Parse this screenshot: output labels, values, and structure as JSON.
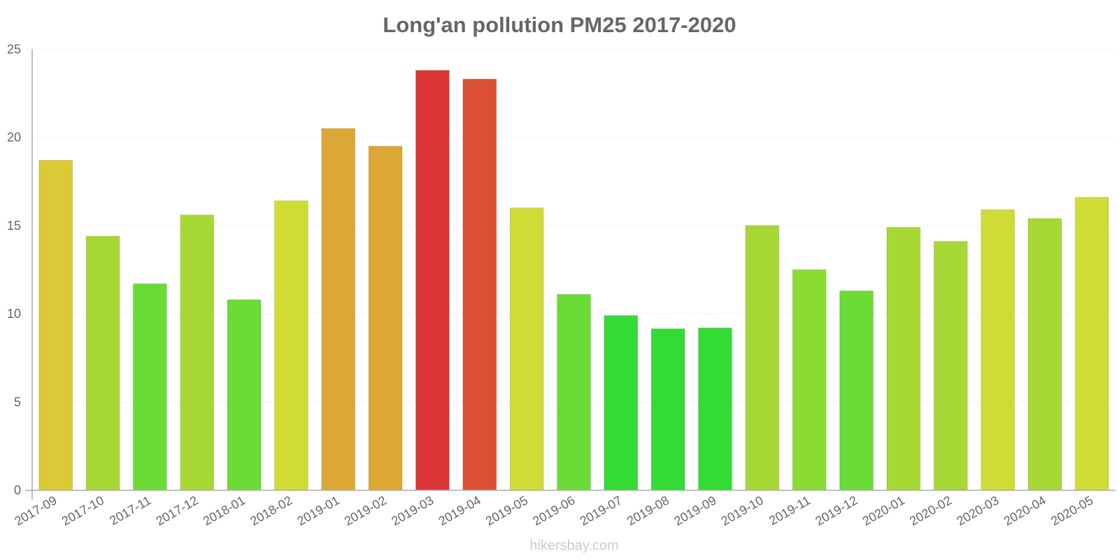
{
  "chart_data": {
    "type": "bar",
    "title": "Long'an pollution PM25 2017-2020",
    "xlabel": "",
    "ylabel": "",
    "ylim": [
      0,
      25
    ],
    "yticks": [
      0,
      5,
      10,
      15,
      20,
      25
    ],
    "grid": true,
    "legend": null,
    "categories": [
      "2017-09",
      "2017-10",
      "2017-11",
      "2017-12",
      "2018-01",
      "2018-02",
      "2019-01",
      "2019-02",
      "2019-03",
      "2019-04",
      "2019-05",
      "2019-06",
      "2019-07",
      "2019-08",
      "2019-09",
      "2019-10",
      "2019-11",
      "2019-12",
      "2020-01",
      "2020-02",
      "2020-03",
      "2020-04",
      "2020-05"
    ],
    "values": [
      18.7,
      14.4,
      11.7,
      15.6,
      10.8,
      16.4,
      20.5,
      19.5,
      23.8,
      23.3,
      16.0,
      11.1,
      9.9,
      9.15,
      9.2,
      15.0,
      12.5,
      11.3,
      14.9,
      14.1,
      15.9,
      15.4,
      16.6
    ],
    "colors": [
      "#dbc935",
      "#a8d835",
      "#6bdb35",
      "#a8d835",
      "#6bdb35",
      "#cfdc35",
      "#dba835",
      "#dba835",
      "#db3535",
      "#db5035",
      "#cfdc35",
      "#6bdb35",
      "#35db35",
      "#35db35",
      "#35db35",
      "#a8d835",
      "#8bdb35",
      "#6bdb35",
      "#a8d835",
      "#a8d835",
      "#cfdc35",
      "#a8d835",
      "#cfdc35"
    ]
  },
  "watermark": "hikersbay.com",
  "style": {
    "text_color": "#666666",
    "axis_color": "#aaaaaa",
    "grid_color": "#f2f2f2",
    "watermark_color": "#cccccc"
  }
}
